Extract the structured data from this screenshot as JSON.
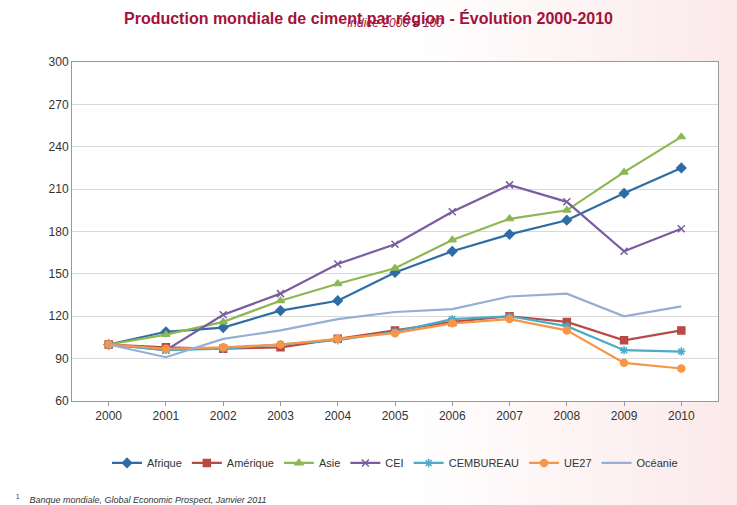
{
  "chart_data": {
    "type": "line",
    "title": "Production mondiale de ciment par région - Évolution 2000-2010",
    "subtitle": "Indice 2000 = 100",
    "categories": [
      "2000",
      "2001",
      "2002",
      "2003",
      "2004",
      "2005",
      "2006",
      "2007",
      "2008",
      "2009",
      "2010"
    ],
    "series": [
      {
        "name": "Afrique",
        "color": "#2e6da4",
        "marker": "diamond",
        "line_style": "solid",
        "values": [
          100,
          109,
          112,
          124,
          131,
          151,
          166,
          178,
          188,
          207,
          225
        ]
      },
      {
        "name": "Amérique",
        "color": "#b84a45",
        "marker": "square",
        "line_style": "solid",
        "values": [
          100,
          98,
          97,
          98,
          104,
          110,
          116,
          120,
          116,
          103,
          110
        ]
      },
      {
        "name": "Asie",
        "color": "#8db752",
        "marker": "triangle",
        "line_style": "solid",
        "values": [
          100,
          107,
          116,
          131,
          143,
          154,
          174,
          189,
          195,
          222,
          247
        ]
      },
      {
        "name": "CEI",
        "color": "#7a5ca0",
        "marker": "x",
        "line_style": "solid",
        "values": [
          100,
          96,
          121,
          136,
          157,
          171,
          194,
          213,
          201,
          166,
          182
        ]
      },
      {
        "name": "CEMBUREAU",
        "color": "#4bacc6",
        "marker": "asterisk",
        "line_style": "solid",
        "values": [
          100,
          96,
          97,
          100,
          103,
          109,
          118,
          120,
          113,
          96,
          95
        ]
      },
      {
        "name": "UE27",
        "color": "#f79646",
        "marker": "circle",
        "line_style": "solid",
        "values": [
          100,
          97,
          98,
          100,
          104,
          108,
          115,
          118,
          110,
          87,
          83
        ]
      },
      {
        "name": "Océanie",
        "color": "#94aed6",
        "marker": "none",
        "line_style": "solid",
        "values": [
          100,
          91,
          104,
          110,
          118,
          123,
          125,
          134,
          136,
          120,
          127
        ]
      }
    ],
    "ylim": [
      60,
      300
    ],
    "yticks": [
      60,
      90,
      120,
      150,
      180,
      210,
      240,
      270,
      300
    ],
    "grid": true,
    "legend": "bottom",
    "footnote": {
      "mark": "1",
      "text": "Banque mondiale, Global Economic Prospect, Janvier 2011"
    }
  }
}
